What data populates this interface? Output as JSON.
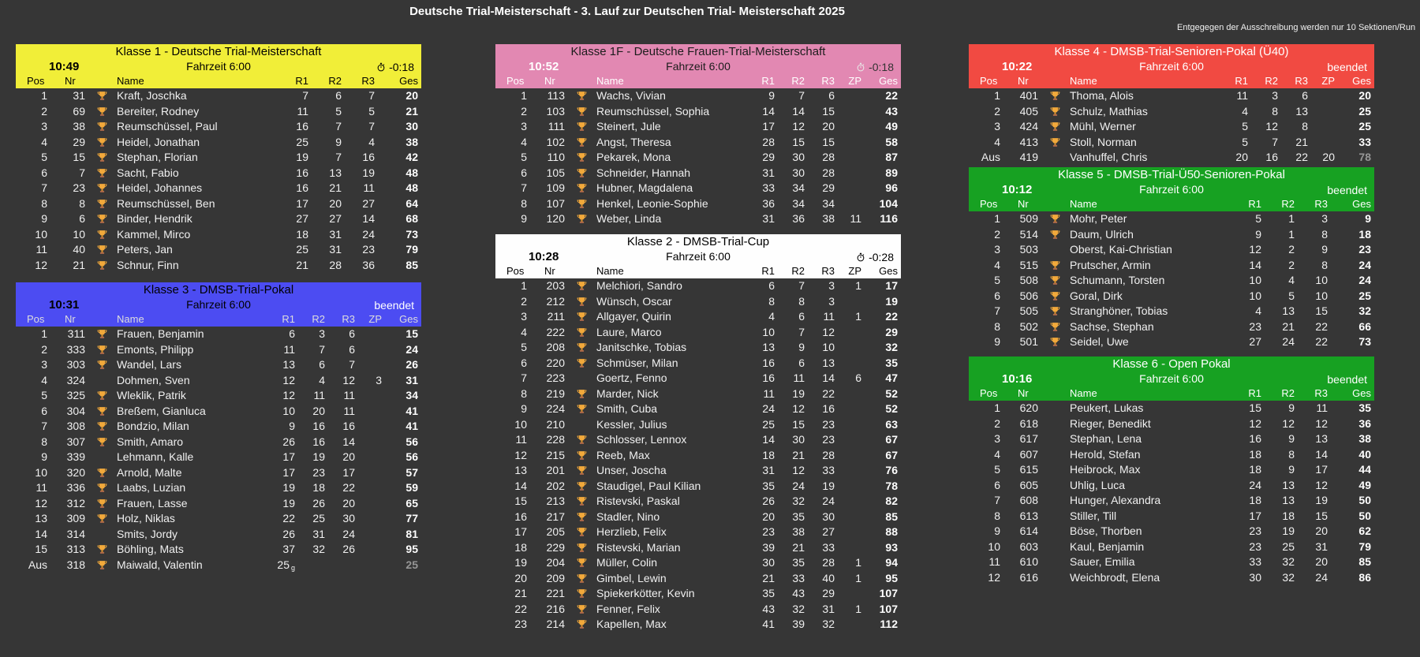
{
  "page": {
    "title": "Deutsche Trial-Meisterschaft - 3. Lauf zur Deutschen Trial- Meisterschaft 2025",
    "note": "Entgegegen der Ausschreibung werden nur 10 Sektionen/Run"
  },
  "colors": {
    "background": "#363636",
    "row_text": "#f0f0f0",
    "total_text": "#ffffff",
    "retired_total_text": "#969696",
    "trophy_gold": "#f2a93b"
  },
  "icons": {
    "trophy-icon": "gold trophy cup (svg shape)",
    "stopwatch-icon": "stopwatch circle with stem (svg shape)"
  },
  "row_format": [
    "pos",
    "nr",
    "has_trophy",
    "name",
    "r1",
    "r2",
    "r3",
    "zp",
    "ges",
    "retired",
    "r1_suffix"
  ],
  "tables": [
    {
      "id": "klasse1",
      "title": "Klasse 1 - Deutsche Trial-Meisterschaft",
      "time": "10:49",
      "fahrzeit": "Fahrzeit 6:00",
      "status": "-0:18",
      "status_type": "running",
      "has_zp": false,
      "columns": [
        "Pos",
        "Nr",
        "Name",
        "R1",
        "R2",
        "R3",
        "Ges"
      ],
      "colors": {
        "header_bg": "#f1ee38",
        "title": "#000000",
        "time": "#000000",
        "fahrzeit": "#000000",
        "status": "#000000",
        "clock": "#000000",
        "cols": "#000000"
      },
      "rows": [
        [
          "1",
          "31",
          1,
          "Kraft, Joschka",
          "7",
          "6",
          "7",
          "",
          "20"
        ],
        [
          "2",
          "69",
          1,
          "Bereiter, Rodney",
          "11",
          "5",
          "5",
          "",
          "21"
        ],
        [
          "3",
          "38",
          1,
          "Reumschüssel, Paul",
          "16",
          "7",
          "7",
          "",
          "30"
        ],
        [
          "4",
          "29",
          1,
          "Heidel, Jonathan",
          "25",
          "9",
          "4",
          "",
          "38"
        ],
        [
          "5",
          "15",
          1,
          "Stephan, Florian",
          "19",
          "7",
          "16",
          "",
          "42"
        ],
        [
          "6",
          "7",
          1,
          "Sacht, Fabio",
          "16",
          "13",
          "19",
          "",
          "48"
        ],
        [
          "7",
          "23",
          1,
          "Heidel, Johannes",
          "16",
          "21",
          "11",
          "",
          "48"
        ],
        [
          "8",
          "8",
          1,
          "Reumschüssel, Ben",
          "17",
          "20",
          "27",
          "",
          "64"
        ],
        [
          "9",
          "6",
          1,
          "Binder, Hendrik",
          "27",
          "27",
          "14",
          "",
          "68"
        ],
        [
          "10",
          "10",
          1,
          "Kammel, Mirco",
          "18",
          "31",
          "24",
          "",
          "73"
        ],
        [
          "11",
          "40",
          1,
          "Peters, Jan",
          "25",
          "31",
          "23",
          "",
          "79"
        ],
        [
          "12",
          "21",
          1,
          "Schnur, Finn",
          "21",
          "28",
          "36",
          "",
          "85"
        ]
      ]
    },
    {
      "id": "klasse3",
      "title": "Klasse 3 - DMSB-Trial-Pokal",
      "time": "10:31",
      "fahrzeit": "Fahrzeit 6:00",
      "status": "beendet",
      "status_type": "finished",
      "has_zp": true,
      "columns": [
        "Pos",
        "Nr",
        "Name",
        "R1",
        "R2",
        "R3",
        "ZP",
        "Ges"
      ],
      "colors": {
        "header_bg": "#4c4cf2",
        "title": "#000000",
        "time": "#000000",
        "fahrzeit": "#000000",
        "status": "#ffffff",
        "clock": "#ffffff",
        "cols": "#dddddd"
      },
      "rows": [
        [
          "1",
          "311",
          1,
          "Frauen, Benjamin",
          "6",
          "3",
          "6",
          "",
          "15"
        ],
        [
          "2",
          "333",
          1,
          "Emonts, Philipp",
          "11",
          "7",
          "6",
          "",
          "24"
        ],
        [
          "3",
          "303",
          1,
          "Wandel, Lars",
          "13",
          "6",
          "7",
          "",
          "26"
        ],
        [
          "4",
          "324",
          0,
          "Dohmen, Sven",
          "12",
          "4",
          "12",
          "3",
          "31"
        ],
        [
          "5",
          "325",
          1,
          "Wleklik, Patrik",
          "12",
          "11",
          "11",
          "",
          "34"
        ],
        [
          "6",
          "304",
          1,
          "Breßem, Gianluca",
          "10",
          "20",
          "11",
          "",
          "41"
        ],
        [
          "7",
          "308",
          1,
          "Bondzio, Milan",
          "9",
          "16",
          "16",
          "",
          "41"
        ],
        [
          "8",
          "307",
          1,
          "Smith, Amaro",
          "26",
          "16",
          "14",
          "",
          "56"
        ],
        [
          "9",
          "339",
          0,
          "Lehmann, Kalle",
          "17",
          "19",
          "20",
          "",
          "56"
        ],
        [
          "10",
          "320",
          1,
          "Arnold, Malte",
          "17",
          "23",
          "17",
          "",
          "57"
        ],
        [
          "11",
          "336",
          1,
          "Laabs, Luzian",
          "19",
          "18",
          "22",
          "",
          "59"
        ],
        [
          "12",
          "312",
          1,
          "Frauen, Lasse",
          "19",
          "26",
          "20",
          "",
          "65"
        ],
        [
          "13",
          "309",
          1,
          "Holz, Niklas",
          "22",
          "25",
          "30",
          "",
          "77"
        ],
        [
          "14",
          "314",
          0,
          "Smits, Jordy",
          "26",
          "31",
          "24",
          "",
          "81"
        ],
        [
          "15",
          "313",
          1,
          "Böhling, Mats",
          "37",
          "32",
          "26",
          "",
          "95"
        ],
        [
          "Aus",
          "318",
          1,
          "Maiwald, Valentin",
          "25",
          "",
          "",
          "",
          "25",
          1,
          "g"
        ]
      ]
    },
    {
      "id": "klasse1f",
      "title": "Klasse 1F - Deutsche Frauen-Trial-Meisterschaft",
      "time": "10:52",
      "fahrzeit": "Fahrzeit 6:00",
      "status": "-0:18",
      "status_type": "running",
      "has_zp": true,
      "columns": [
        "Pos",
        "Nr",
        "Name",
        "R1",
        "R2",
        "R3",
        "ZP",
        "Ges"
      ],
      "colors": {
        "header_bg": "#e288b2",
        "title": "#1c1c1c",
        "time": "#ffffff",
        "fahrzeit": "#1c1c1c",
        "status": "#333333",
        "clock": "#e8e8e8",
        "cols": "#ffffff"
      },
      "rows": [
        [
          "1",
          "113",
          1,
          "Wachs, Vivian",
          "9",
          "7",
          "6",
          "",
          "22"
        ],
        [
          "2",
          "103",
          1,
          "Reumschüssel, Sophia",
          "14",
          "14",
          "15",
          "",
          "43"
        ],
        [
          "3",
          "111",
          1,
          "Steinert, Jule",
          "17",
          "12",
          "20",
          "",
          "49"
        ],
        [
          "4",
          "102",
          1,
          "Angst, Theresa",
          "28",
          "15",
          "15",
          "",
          "58"
        ],
        [
          "5",
          "110",
          1,
          "Pekarek, Mona",
          "29",
          "30",
          "28",
          "",
          "87"
        ],
        [
          "6",
          "105",
          1,
          "Schneider, Hannah",
          "31",
          "30",
          "28",
          "",
          "89"
        ],
        [
          "7",
          "109",
          1,
          "Hubner, Magdalena",
          "33",
          "34",
          "29",
          "",
          "96"
        ],
        [
          "8",
          "107",
          1,
          "Henkel, Leonie-Sophie",
          "36",
          "34",
          "34",
          "",
          "104"
        ],
        [
          "9",
          "120",
          1,
          "Weber, Linda",
          "31",
          "36",
          "38",
          "11",
          "116"
        ]
      ]
    },
    {
      "id": "klasse2",
      "title": "Klasse 2 - DMSB-Trial-Cup",
      "time": "10:28",
      "fahrzeit": "Fahrzeit 6:00",
      "status": "-0:28",
      "status_type": "running",
      "has_zp": true,
      "columns": [
        "Pos",
        "Nr",
        "Name",
        "R1",
        "R2",
        "R3",
        "ZP",
        "Ges"
      ],
      "colors": {
        "header_bg": "#fefefe",
        "title": "#000000",
        "time": "#000000",
        "fahrzeit": "#000000",
        "status": "#000000",
        "clock": "#000000",
        "cols": "#000000"
      },
      "rows": [
        [
          "1",
          "203",
          1,
          "Melchiori, Sandro",
          "6",
          "7",
          "3",
          "1",
          "17"
        ],
        [
          "2",
          "212",
          1,
          "Wünsch, Oscar",
          "8",
          "8",
          "3",
          "",
          "19"
        ],
        [
          "3",
          "211",
          1,
          "Allgayer, Quirin",
          "4",
          "6",
          "11",
          "1",
          "22"
        ],
        [
          "4",
          "222",
          1,
          "Laure, Marco",
          "10",
          "7",
          "12",
          "",
          "29"
        ],
        [
          "5",
          "208",
          1,
          "Janitschke, Tobias",
          "13",
          "9",
          "10",
          "",
          "32"
        ],
        [
          "6",
          "220",
          1,
          "Schmüser, Milan",
          "16",
          "6",
          "13",
          "",
          "35"
        ],
        [
          "7",
          "223",
          0,
          "Goertz, Fenno",
          "16",
          "11",
          "14",
          "6",
          "47"
        ],
        [
          "8",
          "219",
          1,
          "Marder, Nick",
          "11",
          "19",
          "22",
          "",
          "52"
        ],
        [
          "9",
          "224",
          1,
          "Smith, Cuba",
          "24",
          "12",
          "16",
          "",
          "52"
        ],
        [
          "10",
          "210",
          0,
          "Kessler, Julius",
          "25",
          "15",
          "23",
          "",
          "63"
        ],
        [
          "11",
          "228",
          1,
          "Schlosser, Lennox",
          "14",
          "30",
          "23",
          "",
          "67"
        ],
        [
          "12",
          "215",
          1,
          "Reeb, Max",
          "18",
          "21",
          "28",
          "",
          "67"
        ],
        [
          "13",
          "201",
          1,
          "Unser, Joscha",
          "31",
          "12",
          "33",
          "",
          "76"
        ],
        [
          "14",
          "202",
          1,
          "Staudigel, Paul Kilian",
          "35",
          "24",
          "19",
          "",
          "78"
        ],
        [
          "15",
          "213",
          1,
          "Ristevski, Paskal",
          "26",
          "32",
          "24",
          "",
          "82"
        ],
        [
          "16",
          "217",
          1,
          "Stadler, Nino",
          "20",
          "35",
          "30",
          "",
          "85"
        ],
        [
          "17",
          "205",
          1,
          "Herzlieb, Felix",
          "23",
          "38",
          "27",
          "",
          "88"
        ],
        [
          "18",
          "229",
          1,
          "Ristevski, Marian",
          "39",
          "21",
          "33",
          "",
          "93"
        ],
        [
          "19",
          "204",
          1,
          "Müller, Colin",
          "30",
          "35",
          "28",
          "1",
          "94"
        ],
        [
          "20",
          "209",
          1,
          "Gimbel, Lewin",
          "21",
          "33",
          "40",
          "1",
          "95"
        ],
        [
          "21",
          "221",
          1,
          "Spiekerkötter, Kevin",
          "35",
          "43",
          "29",
          "",
          "107"
        ],
        [
          "22",
          "216",
          1,
          "Fenner, Felix",
          "43",
          "32",
          "31",
          "1",
          "107"
        ],
        [
          "23",
          "214",
          1,
          "Kapellen, Max",
          "41",
          "39",
          "32",
          "",
          "112"
        ]
      ]
    },
    {
      "id": "klasse4",
      "title": "Klasse 4 - DMSB-Trial-Senioren-Pokal (Ü40)",
      "time": "10:22",
      "fahrzeit": "Fahrzeit 6:00",
      "status": "beendet",
      "status_type": "finished",
      "has_zp": true,
      "columns": [
        "Pos",
        "Nr",
        "Name",
        "R1",
        "R2",
        "R3",
        "ZP",
        "Ges"
      ],
      "colors": {
        "header_bg": "#f14a42",
        "title": "#ffffff",
        "time": "#ffffff",
        "fahrzeit": "#ffffff",
        "status": "#ffffff",
        "clock": "#ffffff",
        "cols": "#ffffff"
      },
      "rows": [
        [
          "1",
          "401",
          1,
          "Thoma, Alois",
          "11",
          "3",
          "6",
          "",
          "20"
        ],
        [
          "2",
          "405",
          1,
          "Schulz, Mathias",
          "4",
          "8",
          "13",
          "",
          "25"
        ],
        [
          "3",
          "424",
          1,
          "Mühl, Werner",
          "5",
          "12",
          "8",
          "",
          "25"
        ],
        [
          "4",
          "413",
          1,
          "Stoll, Norman",
          "5",
          "7",
          "21",
          "",
          "33"
        ],
        [
          "Aus",
          "419",
          0,
          "Vanhuffel, Chris",
          "20",
          "16",
          "22",
          "20",
          "78",
          1
        ]
      ]
    },
    {
      "id": "klasse5",
      "title": "Klasse 5 - DMSB-Trial-Ü50-Senioren-Pokal",
      "time": "10:12",
      "fahrzeit": "Fahrzeit 6:00",
      "status": "beendet",
      "status_type": "finished",
      "has_zp": false,
      "columns": [
        "Pos",
        "Nr",
        "Name",
        "R1",
        "R2",
        "R3",
        "Ges"
      ],
      "colors": {
        "header_bg": "#17a122",
        "title": "#ffffff",
        "time": "#ffffff",
        "fahrzeit": "#ffffff",
        "status": "#ffffff",
        "clock": "#ffffff",
        "cols": "#ffffff"
      },
      "rows": [
        [
          "1",
          "509",
          1,
          "Mohr, Peter",
          "5",
          "1",
          "3",
          "",
          "9"
        ],
        [
          "2",
          "514",
          1,
          "Daum, Ulrich",
          "9",
          "1",
          "8",
          "",
          "18"
        ],
        [
          "3",
          "503",
          0,
          "Oberst, Kai-Christian",
          "12",
          "2",
          "9",
          "",
          "23"
        ],
        [
          "4",
          "515",
          1,
          "Prutscher, Armin",
          "14",
          "2",
          "8",
          "",
          "24"
        ],
        [
          "5",
          "508",
          1,
          "Schumann, Torsten",
          "10",
          "4",
          "10",
          "",
          "24"
        ],
        [
          "6",
          "506",
          1,
          "Goral, Dirk",
          "10",
          "5",
          "10",
          "",
          "25"
        ],
        [
          "7",
          "505",
          1,
          "Stranghöner, Tobias",
          "4",
          "13",
          "15",
          "",
          "32"
        ],
        [
          "8",
          "502",
          1,
          "Sachse, Stephan",
          "23",
          "21",
          "22",
          "",
          "66"
        ],
        [
          "9",
          "501",
          1,
          "Seidel, Uwe",
          "27",
          "24",
          "22",
          "",
          "73"
        ]
      ]
    },
    {
      "id": "klasse6",
      "title": "Klasse 6 - Open Pokal",
      "time": "10:16",
      "fahrzeit": "Fahrzeit 6:00",
      "status": "beendet",
      "status_type": "finished",
      "has_zp": false,
      "columns": [
        "Pos",
        "Nr",
        "Name",
        "R1",
        "R2",
        "R3",
        "Ges"
      ],
      "colors": {
        "header_bg": "#17a122",
        "title": "#ffffff",
        "time": "#ffffff",
        "fahrzeit": "#ffffff",
        "status": "#ffffff",
        "clock": "#ffffff",
        "cols": "#ffffff"
      },
      "rows": [
        [
          "1",
          "620",
          0,
          "Peukert, Lukas",
          "15",
          "9",
          "11",
          "",
          "35"
        ],
        [
          "2",
          "618",
          0,
          "Rieger, Benedikt",
          "12",
          "12",
          "12",
          "",
          "36"
        ],
        [
          "3",
          "617",
          0,
          "Stephan, Lena",
          "16",
          "9",
          "13",
          "",
          "38"
        ],
        [
          "4",
          "607",
          0,
          "Herold, Stefan",
          "18",
          "8",
          "14",
          "",
          "40"
        ],
        [
          "5",
          "615",
          0,
          "Heibrock, Max",
          "18",
          "9",
          "17",
          "",
          "44"
        ],
        [
          "6",
          "605",
          0,
          "Uhlig, Luca",
          "24",
          "13",
          "12",
          "",
          "49"
        ],
        [
          "7",
          "608",
          0,
          "Hunger, Alexandra",
          "18",
          "13",
          "19",
          "",
          "50"
        ],
        [
          "8",
          "613",
          0,
          "Stiller, Till",
          "17",
          "18",
          "15",
          "",
          "50"
        ],
        [
          "9",
          "614",
          0,
          "Böse, Thorben",
          "23",
          "19",
          "20",
          "",
          "62"
        ],
        [
          "10",
          "603",
          0,
          "Kaul, Benjamin",
          "23",
          "25",
          "31",
          "",
          "79"
        ],
        [
          "11",
          "610",
          0,
          "Sauer, Emilia",
          "33",
          "32",
          "20",
          "",
          "85"
        ],
        [
          "12",
          "616",
          0,
          "Weichbrodt, Elena",
          "30",
          "32",
          "24",
          "",
          "86"
        ]
      ]
    }
  ]
}
